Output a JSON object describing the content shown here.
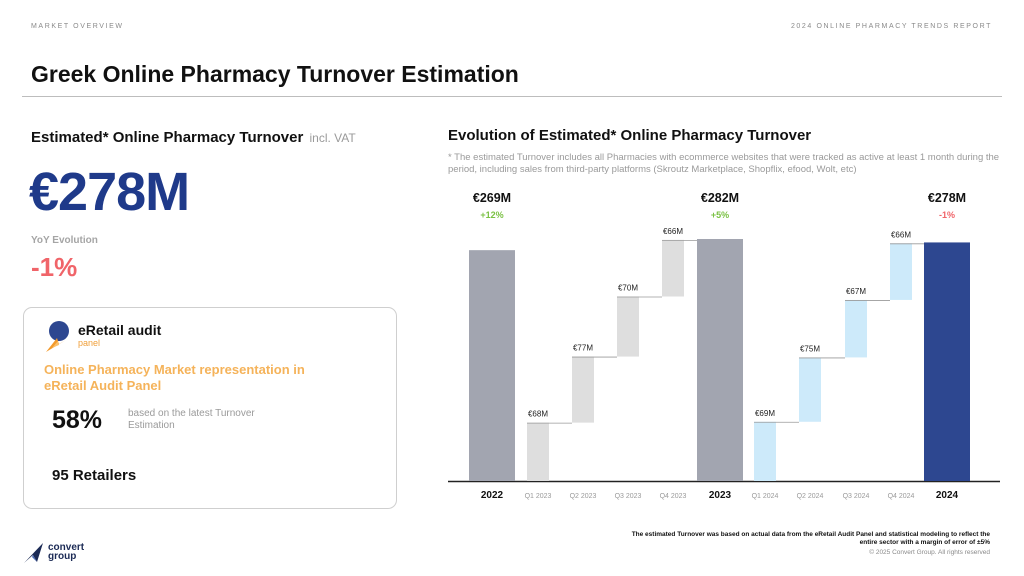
{
  "header": {
    "section": "MARKET OVERVIEW",
    "report": "2024 ONLINE PHARMACY TRENDS REPORT",
    "title": "Greek Online Pharmacy Turnover Estimation"
  },
  "left": {
    "heading": "Estimated* Online Pharmacy Turnover",
    "heading_suffix": "incl. VAT",
    "value": "€278M",
    "yoy_label": "YoY Evolution",
    "yoy_value": "-1%",
    "panel": {
      "brand": "eRetail audit",
      "brand_sub": "panel",
      "heading": "Online Pharmacy Market representation in eRetail Audit Panel",
      "percent": "58%",
      "percent_note": "based on the latest Turnover Estimation",
      "retailers": "95 Retailers"
    }
  },
  "right": {
    "heading": "Evolution of Estimated* Online Pharmacy Turnover",
    "footnote": "* The estimated Turnover includes all Pharmacies with ecommerce websites that were tracked as active at least 1 month during the period, including sales from third-party platforms (Skroutz Marketplace, Shopflix, efood, Wolt, etc)"
  },
  "footer": {
    "note": "The estimated Turnover was based on actual data from the eRetail Audit Panel and statistical modeling to reflect the entire sector with a margin of error of ±5%",
    "copyright": "© 2025 Convert Group. All rights reserved",
    "logo_text_1": "convert",
    "logo_text_2": "group"
  },
  "colors": {
    "total_gray": "#a2a5b0",
    "total_navy": "#2d4790",
    "q2023": "#dedede",
    "q2024": "#cdeafa",
    "brand_blue": "#1f3a8a",
    "negative": "#f06469",
    "positive": "#7ac143"
  },
  "chart_data": {
    "type": "bar",
    "subtype": "waterfall",
    "categories": [
      "2022",
      "Q1 2023",
      "Q2 2023",
      "Q3 2023",
      "Q4 2023",
      "2023",
      "Q1 2024",
      "Q2 2024",
      "Q3 2024",
      "Q4 2024",
      "2024"
    ],
    "bars": [
      {
        "category": "2022",
        "kind": "total",
        "value": 269,
        "label": "€269M",
        "change": "+12%",
        "color": "#a2a5b0"
      },
      {
        "category": "Q1 2023",
        "kind": "step",
        "value": 68,
        "label": "€68M",
        "color": "#dedede"
      },
      {
        "category": "Q2 2023",
        "kind": "step",
        "value": 77,
        "label": "€77M",
        "color": "#dedede"
      },
      {
        "category": "Q3 2023",
        "kind": "step",
        "value": 70,
        "label": "€70M",
        "color": "#dedede"
      },
      {
        "category": "Q4 2023",
        "kind": "step",
        "value": 66,
        "label": "€66M",
        "color": "#dedede"
      },
      {
        "category": "2023",
        "kind": "total",
        "value": 282,
        "label": "€282M",
        "change": "+5%",
        "color": "#a2a5b0"
      },
      {
        "category": "Q1 2024",
        "kind": "step",
        "value": 69,
        "label": "€69M",
        "color": "#cdeafa"
      },
      {
        "category": "Q2 2024",
        "kind": "step",
        "value": 75,
        "label": "€75M",
        "color": "#cdeafa"
      },
      {
        "category": "Q3 2024",
        "kind": "step",
        "value": 67,
        "label": "€67M",
        "color": "#cdeafa"
      },
      {
        "category": "Q4 2024",
        "kind": "step",
        "value": 66,
        "label": "€66M",
        "color": "#cdeafa"
      },
      {
        "category": "2024",
        "kind": "total",
        "value": 278,
        "label": "€278M",
        "change": "-1%",
        "color": "#2d4790"
      }
    ],
    "ylim": [
      0,
      290
    ],
    "grid": false,
    "legend": "none"
  }
}
